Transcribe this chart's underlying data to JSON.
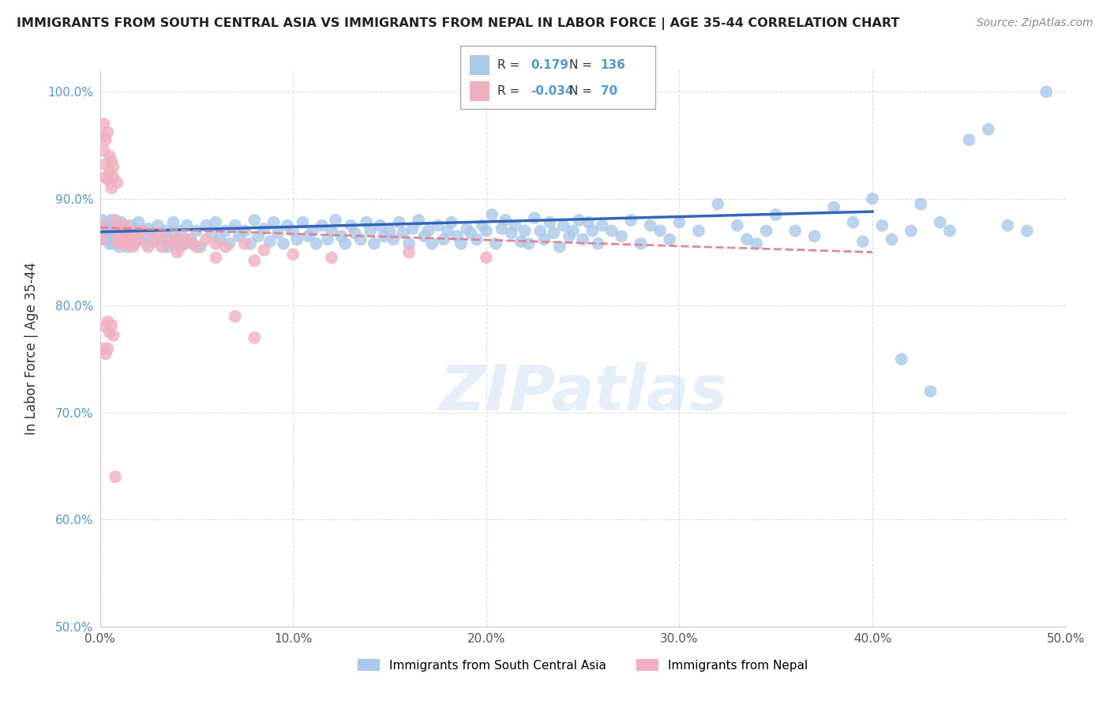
{
  "title": "IMMIGRANTS FROM SOUTH CENTRAL ASIA VS IMMIGRANTS FROM NEPAL IN LABOR FORCE | AGE 35-44 CORRELATION CHART",
  "source": "Source: ZipAtlas.com",
  "ylabel": "In Labor Force | Age 35-44",
  "xlim": [
    0.0,
    0.5
  ],
  "ylim": [
    0.5,
    1.02
  ],
  "yticks": [
    0.5,
    0.6,
    0.7,
    0.8,
    0.9,
    1.0
  ],
  "ytick_labels": [
    "50.0%",
    "60.0%",
    "70.0%",
    "80.0%",
    "90.0%",
    "100.0%"
  ],
  "xticks": [
    0.0,
    0.1,
    0.2,
    0.3,
    0.4,
    0.5
  ],
  "xtick_labels": [
    "0.0%",
    "10.0%",
    "20.0%",
    "30.0%",
    "40.0%",
    "50.0%"
  ],
  "blue_R": 0.179,
  "blue_N": 136,
  "pink_R": -0.034,
  "pink_N": 70,
  "blue_color": "#aac8e8",
  "pink_color": "#f0b0c0",
  "blue_line_color": "#3366bb",
  "pink_line_color": "#dd8899",
  "blue_scatter": [
    [
      0.001,
      0.88
    ],
    [
      0.002,
      0.872
    ],
    [
      0.002,
      0.875
    ],
    [
      0.003,
      0.868
    ],
    [
      0.003,
      0.862
    ],
    [
      0.004,
      0.87
    ],
    [
      0.004,
      0.878
    ],
    [
      0.005,
      0.865
    ],
    [
      0.005,
      0.858
    ],
    [
      0.006,
      0.872
    ],
    [
      0.006,
      0.88
    ],
    [
      0.007,
      0.865
    ],
    [
      0.007,
      0.858
    ],
    [
      0.008,
      0.872
    ],
    [
      0.008,
      0.86
    ],
    [
      0.009,
      0.875
    ],
    [
      0.01,
      0.868
    ],
    [
      0.01,
      0.855
    ],
    [
      0.011,
      0.878
    ],
    [
      0.012,
      0.862
    ],
    [
      0.013,
      0.87
    ],
    [
      0.014,
      0.855
    ],
    [
      0.015,
      0.865
    ],
    [
      0.016,
      0.875
    ],
    [
      0.017,
      0.858
    ],
    [
      0.018,
      0.87
    ],
    [
      0.019,
      0.862
    ],
    [
      0.02,
      0.878
    ],
    [
      0.022,
      0.865
    ],
    [
      0.024,
      0.858
    ],
    [
      0.025,
      0.872
    ],
    [
      0.027,
      0.868
    ],
    [
      0.028,
      0.86
    ],
    [
      0.03,
      0.875
    ],
    [
      0.032,
      0.862
    ],
    [
      0.034,
      0.87
    ],
    [
      0.035,
      0.855
    ],
    [
      0.037,
      0.868
    ],
    [
      0.038,
      0.878
    ],
    [
      0.04,
      0.862
    ],
    [
      0.042,
      0.87
    ],
    [
      0.044,
      0.858
    ],
    [
      0.045,
      0.875
    ],
    [
      0.047,
      0.862
    ],
    [
      0.05,
      0.87
    ],
    [
      0.052,
      0.855
    ],
    [
      0.055,
      0.875
    ],
    [
      0.058,
      0.868
    ],
    [
      0.06,
      0.878
    ],
    [
      0.062,
      0.862
    ],
    [
      0.065,
      0.87
    ],
    [
      0.067,
      0.858
    ],
    [
      0.07,
      0.875
    ],
    [
      0.072,
      0.865
    ],
    [
      0.075,
      0.87
    ],
    [
      0.078,
      0.858
    ],
    [
      0.08,
      0.88
    ],
    [
      0.082,
      0.865
    ],
    [
      0.085,
      0.872
    ],
    [
      0.088,
      0.86
    ],
    [
      0.09,
      0.878
    ],
    [
      0.092,
      0.868
    ],
    [
      0.095,
      0.858
    ],
    [
      0.097,
      0.875
    ],
    [
      0.1,
      0.87
    ],
    [
      0.102,
      0.862
    ],
    [
      0.105,
      0.878
    ],
    [
      0.108,
      0.865
    ],
    [
      0.11,
      0.87
    ],
    [
      0.112,
      0.858
    ],
    [
      0.115,
      0.875
    ],
    [
      0.118,
      0.862
    ],
    [
      0.12,
      0.87
    ],
    [
      0.122,
      0.88
    ],
    [
      0.125,
      0.865
    ],
    [
      0.127,
      0.858
    ],
    [
      0.13,
      0.875
    ],
    [
      0.132,
      0.868
    ],
    [
      0.135,
      0.862
    ],
    [
      0.138,
      0.878
    ],
    [
      0.14,
      0.87
    ],
    [
      0.142,
      0.858
    ],
    [
      0.145,
      0.875
    ],
    [
      0.147,
      0.865
    ],
    [
      0.15,
      0.87
    ],
    [
      0.152,
      0.862
    ],
    [
      0.155,
      0.878
    ],
    [
      0.157,
      0.868
    ],
    [
      0.16,
      0.858
    ],
    [
      0.162,
      0.872
    ],
    [
      0.165,
      0.88
    ],
    [
      0.168,
      0.865
    ],
    [
      0.17,
      0.87
    ],
    [
      0.172,
      0.858
    ],
    [
      0.175,
      0.875
    ],
    [
      0.178,
      0.862
    ],
    [
      0.18,
      0.87
    ],
    [
      0.182,
      0.878
    ],
    [
      0.185,
      0.865
    ],
    [
      0.187,
      0.858
    ],
    [
      0.19,
      0.872
    ],
    [
      0.192,
      0.868
    ],
    [
      0.195,
      0.862
    ],
    [
      0.198,
      0.875
    ],
    [
      0.2,
      0.87
    ],
    [
      0.203,
      0.885
    ],
    [
      0.205,
      0.858
    ],
    [
      0.208,
      0.872
    ],
    [
      0.21,
      0.88
    ],
    [
      0.213,
      0.868
    ],
    [
      0.215,
      0.875
    ],
    [
      0.218,
      0.86
    ],
    [
      0.22,
      0.87
    ],
    [
      0.222,
      0.858
    ],
    [
      0.225,
      0.882
    ],
    [
      0.228,
      0.87
    ],
    [
      0.23,
      0.862
    ],
    [
      0.233,
      0.878
    ],
    [
      0.235,
      0.868
    ],
    [
      0.238,
      0.855
    ],
    [
      0.24,
      0.875
    ],
    [
      0.243,
      0.865
    ],
    [
      0.245,
      0.87
    ],
    [
      0.248,
      0.88
    ],
    [
      0.25,
      0.862
    ],
    [
      0.253,
      0.878
    ],
    [
      0.255,
      0.87
    ],
    [
      0.258,
      0.858
    ],
    [
      0.26,
      0.875
    ],
    [
      0.265,
      0.87
    ],
    [
      0.27,
      0.865
    ],
    [
      0.275,
      0.88
    ],
    [
      0.28,
      0.858
    ],
    [
      0.285,
      0.875
    ],
    [
      0.29,
      0.87
    ],
    [
      0.295,
      0.862
    ],
    [
      0.3,
      0.878
    ],
    [
      0.31,
      0.87
    ],
    [
      0.32,
      0.895
    ],
    [
      0.33,
      0.875
    ],
    [
      0.335,
      0.862
    ],
    [
      0.34,
      0.858
    ],
    [
      0.345,
      0.87
    ],
    [
      0.35,
      0.885
    ],
    [
      0.36,
      0.87
    ],
    [
      0.37,
      0.865
    ],
    [
      0.38,
      0.892
    ],
    [
      0.39,
      0.878
    ],
    [
      0.395,
      0.86
    ],
    [
      0.4,
      0.9
    ],
    [
      0.405,
      0.875
    ],
    [
      0.41,
      0.862
    ],
    [
      0.415,
      0.75
    ],
    [
      0.42,
      0.87
    ],
    [
      0.425,
      0.895
    ],
    [
      0.43,
      0.72
    ],
    [
      0.435,
      0.878
    ],
    [
      0.44,
      0.87
    ],
    [
      0.45,
      0.955
    ],
    [
      0.46,
      0.965
    ],
    [
      0.47,
      0.875
    ],
    [
      0.48,
      0.87
    ],
    [
      0.49,
      1.0
    ]
  ],
  "pink_scatter": [
    [
      0.001,
      0.875
    ],
    [
      0.001,
      0.862
    ],
    [
      0.002,
      0.97
    ],
    [
      0.002,
      0.958
    ],
    [
      0.002,
      0.945
    ],
    [
      0.003,
      0.932
    ],
    [
      0.003,
      0.955
    ],
    [
      0.003,
      0.92
    ],
    [
      0.004,
      0.962
    ],
    [
      0.004,
      0.918
    ],
    [
      0.005,
      0.94
    ],
    [
      0.005,
      0.925
    ],
    [
      0.006,
      0.935
    ],
    [
      0.006,
      0.91
    ],
    [
      0.007,
      0.93
    ],
    [
      0.007,
      0.92
    ],
    [
      0.008,
      0.87
    ],
    [
      0.008,
      0.88
    ],
    [
      0.009,
      0.86
    ],
    [
      0.009,
      0.915
    ],
    [
      0.01,
      0.872
    ],
    [
      0.01,
      0.862
    ],
    [
      0.011,
      0.858
    ],
    [
      0.012,
      0.87
    ],
    [
      0.012,
      0.862
    ],
    [
      0.013,
      0.875
    ],
    [
      0.014,
      0.858
    ],
    [
      0.015,
      0.862
    ],
    [
      0.016,
      0.87
    ],
    [
      0.017,
      0.855
    ],
    [
      0.018,
      0.858
    ],
    [
      0.019,
      0.868
    ],
    [
      0.02,
      0.862
    ],
    [
      0.022,
      0.87
    ],
    [
      0.025,
      0.855
    ],
    [
      0.028,
      0.862
    ],
    [
      0.03,
      0.868
    ],
    [
      0.032,
      0.855
    ],
    [
      0.035,
      0.862
    ],
    [
      0.038,
      0.858
    ],
    [
      0.04,
      0.862
    ],
    [
      0.042,
      0.855
    ],
    [
      0.045,
      0.862
    ],
    [
      0.048,
      0.858
    ],
    [
      0.05,
      0.855
    ],
    [
      0.055,
      0.862
    ],
    [
      0.06,
      0.858
    ],
    [
      0.065,
      0.855
    ],
    [
      0.07,
      0.79
    ],
    [
      0.075,
      0.858
    ],
    [
      0.08,
      0.77
    ],
    [
      0.085,
      0.852
    ],
    [
      0.002,
      0.76
    ],
    [
      0.003,
      0.755
    ],
    [
      0.004,
      0.76
    ],
    [
      0.003,
      0.78
    ],
    [
      0.004,
      0.785
    ],
    [
      0.005,
      0.775
    ],
    [
      0.006,
      0.782
    ],
    [
      0.007,
      0.772
    ],
    [
      0.008,
      0.64
    ],
    [
      0.04,
      0.85
    ],
    [
      0.06,
      0.845
    ],
    [
      0.08,
      0.842
    ],
    [
      0.1,
      0.848
    ],
    [
      0.12,
      0.845
    ],
    [
      0.16,
      0.85
    ],
    [
      0.2,
      0.845
    ]
  ],
  "watermark": "ZIPatlas",
  "background_color": "#ffffff",
  "grid_color": "#cccccc"
}
